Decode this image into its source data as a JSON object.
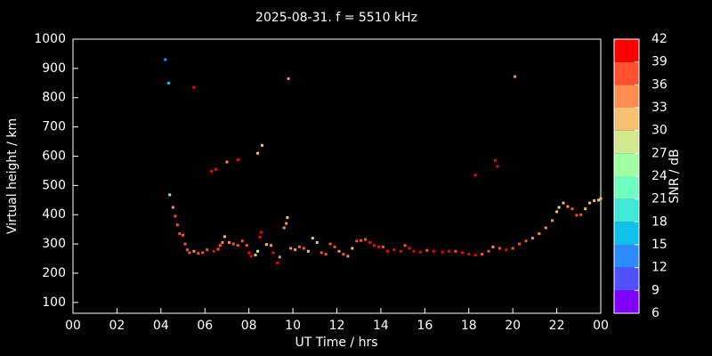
{
  "chart_data": {
    "type": "scatter",
    "title": "2025-08-31. f = 5510 kHz",
    "x_label": "UT Time / hrs",
    "y_label": "Virtual height / km",
    "colorbar_label": "SNR / dB",
    "xlim": [
      0,
      24
    ],
    "xticks": [
      {
        "value": 0,
        "label": "00"
      },
      {
        "value": 2,
        "label": "02"
      },
      {
        "value": 4,
        "label": "04"
      },
      {
        "value": 6,
        "label": "06"
      },
      {
        "value": 8,
        "label": "08"
      },
      10,
      12,
      14,
      16,
      18,
      20,
      22,
      {
        "value": 24,
        "label": "00"
      }
    ],
    "ylim": [
      63,
      1000
    ],
    "yticks": [
      100,
      200,
      300,
      400,
      500,
      600,
      700,
      800,
      900,
      1000
    ],
    "colorbar_ticks": [
      6,
      9,
      12,
      15,
      18,
      21,
      24,
      27,
      30,
      33,
      36,
      39,
      42
    ],
    "colorbar_colors": [
      "#8000ff",
      "#5050ff",
      "#2c8cff",
      "#10c0e8",
      "#40e8d8",
      "#70ffc0",
      "#a0ffa0",
      "#d0e890",
      "#f5c070",
      "#ff8c50",
      "#ff5030",
      "#ff0000"
    ],
    "series": [
      {
        "x": [
          4.2,
          4.35,
          5.5,
          6.3,
          6.5,
          7.0,
          7.5,
          8.4,
          8.6,
          9.8,
          18.3,
          19.2,
          19.3,
          20.1,
          8.5,
          8.55,
          4.4,
          4.55,
          4.65,
          4.75,
          4.85,
          5.0,
          5.1,
          5.2,
          5.3,
          5.5,
          5.7,
          5.9,
          6.1,
          6.4,
          6.6,
          6.7,
          6.8,
          6.9,
          7.1,
          7.3,
          7.5,
          7.7,
          7.9,
          8.0,
          8.1,
          8.3,
          8.4,
          8.8,
          9.0,
          9.1,
          9.3,
          9.4,
          9.6,
          9.7,
          9.75,
          9.9,
          10.1,
          10.3,
          10.5,
          10.7,
          10.9,
          11.1,
          11.3,
          11.5,
          11.7,
          11.9,
          12.1,
          12.3,
          12.5,
          12.7,
          12.9,
          13.1,
          13.3,
          13.5,
          13.7,
          13.9,
          14.1,
          14.3,
          14.6,
          14.9,
          15.1,
          15.3,
          15.5,
          15.8,
          16.1,
          16.4,
          16.8,
          17.1,
          17.4,
          17.7,
          18.0,
          18.3,
          18.6,
          18.9,
          19.1,
          19.4,
          19.7,
          20.0,
          20.3,
          20.6,
          20.9,
          21.2,
          21.5,
          21.8,
          22.0,
          22.1,
          22.3,
          22.5,
          22.7,
          22.9,
          23.1,
          23.3,
          23.5,
          23.7,
          23.9,
          24.0
        ],
        "values": [
          930,
          850,
          835,
          548,
          555,
          580,
          588,
          610,
          637,
          865,
          535,
          585,
          565,
          872,
          323,
          340,
          468,
          425,
          395,
          365,
          335,
          330,
          300,
          280,
          270,
          275,
          268,
          270,
          280,
          275,
          282,
          295,
          305,
          325,
          305,
          300,
          295,
          310,
          295,
          270,
          258,
          262,
          275,
          298,
          295,
          270,
          235,
          255,
          355,
          370,
          390,
          285,
          280,
          290,
          285,
          275,
          320,
          305,
          270,
          265,
          300,
          290,
          275,
          265,
          258,
          285,
          310,
          312,
          315,
          305,
          295,
          290,
          290,
          275,
          280,
          275,
          295,
          285,
          275,
          272,
          278,
          275,
          272,
          275,
          275,
          270,
          265,
          262,
          265,
          275,
          290,
          285,
          280,
          285,
          300,
          310,
          320,
          335,
          355,
          380,
          410,
          425,
          440,
          428,
          420,
          398,
          400,
          420,
          440,
          448,
          450,
          455
        ],
        "snr": [
          12,
          15,
          39,
          39,
          39,
          33,
          39,
          30,
          30,
          33,
          39,
          39,
          39,
          33,
          39,
          39,
          21,
          33,
          36,
          36,
          36,
          36,
          36,
          36,
          36,
          33,
          36,
          36,
          36,
          39,
          36,
          36,
          33,
          30,
          33,
          36,
          36,
          36,
          36,
          39,
          39,
          30,
          27,
          30,
          33,
          39,
          39,
          33,
          33,
          33,
          30,
          33,
          33,
          36,
          36,
          30,
          30,
          30,
          36,
          36,
          36,
          36,
          33,
          36,
          33,
          30,
          36,
          36,
          36,
          39,
          39,
          39,
          36,
          39,
          39,
          39,
          36,
          39,
          39,
          39,
          36,
          39,
          39,
          39,
          36,
          39,
          39,
          39,
          36,
          36,
          33,
          36,
          39,
          36,
          36,
          36,
          33,
          33,
          33,
          33,
          30,
          27,
          30,
          33,
          36,
          36,
          36,
          30,
          30,
          30,
          30,
          30
        ]
      }
    ]
  }
}
